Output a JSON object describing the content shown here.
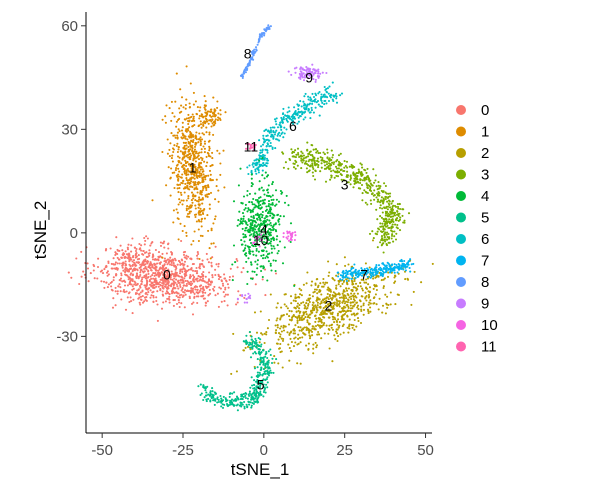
{
  "chart_data": {
    "type": "scatter",
    "xlabel": "tSNE_1",
    "ylabel": "tSNE_2",
    "xlim": [
      -55,
      52
    ],
    "ylim": [
      -58,
      64
    ],
    "x_ticks": [
      -50,
      -25,
      0,
      25,
      50
    ],
    "x_tick_labels": [
      "-50",
      "-25",
      "0",
      "25",
      "50"
    ],
    "y_ticks": [
      -30,
      0,
      30,
      60
    ],
    "y_tick_labels": [
      "-30",
      "0",
      "30",
      "60"
    ],
    "grid": false,
    "legend_position": "right",
    "point_shape": "circle",
    "clusters": [
      {
        "name": "0",
        "color": "#F8766D",
        "label_pos": [
          -30,
          -12
        ]
      },
      {
        "name": "1",
        "color": "#DE8C00",
        "label_pos": [
          -22,
          19
        ]
      },
      {
        "name": "2",
        "color": "#B79F00",
        "label_pos": [
          20,
          -21
        ]
      },
      {
        "name": "3",
        "color": "#7CAE00",
        "label_pos": [
          25,
          14
        ]
      },
      {
        "name": "4",
        "color": "#00BA38",
        "label_pos": [
          0,
          1
        ]
      },
      {
        "name": "5",
        "color": "#00C08B",
        "label_pos": [
          -1,
          -44
        ]
      },
      {
        "name": "6",
        "color": "#00BFC4",
        "label_pos": [
          9,
          31
        ]
      },
      {
        "name": "7",
        "color": "#00B4F0",
        "label_pos": [
          31,
          -12
        ]
      },
      {
        "name": "8",
        "color": "#619CFF",
        "label_pos": [
          -5,
          52
        ]
      },
      {
        "name": "9",
        "color": "#C77CFF",
        "label_pos": [
          14,
          45
        ]
      },
      {
        "name": "10",
        "color": "#F564E3",
        "label_pos": [
          -1,
          -2
        ]
      },
      {
        "name": "11",
        "color": "#FF64B0",
        "label_pos": [
          -4,
          25
        ]
      }
    ]
  }
}
